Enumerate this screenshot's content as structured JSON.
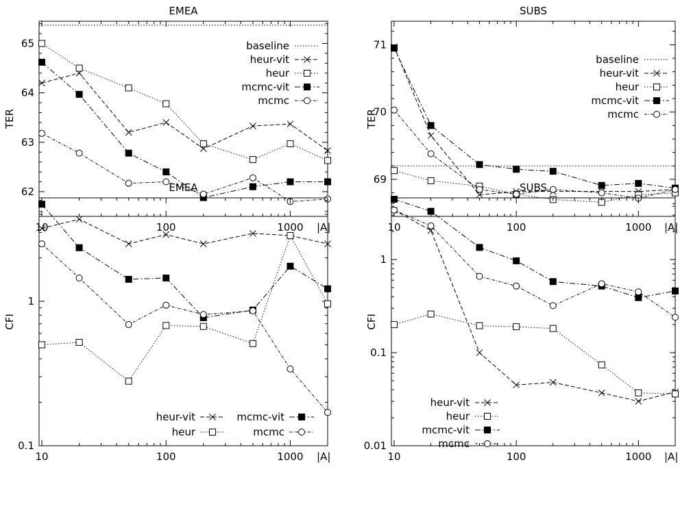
{
  "chart_data": [
    {
      "type": "line",
      "title": "EMEA",
      "xlabel": "|A|",
      "ylabel": "TER",
      "xscale": "log",
      "xlim": [
        9.5,
        2000
      ],
      "ylim": [
        61.5,
        65.45
      ],
      "xticks": [
        10,
        100,
        1000
      ],
      "xtick_labels": [
        "10",
        "100",
        "1000"
      ],
      "yticks": [
        62,
        63,
        64,
        65
      ],
      "ytick_labels": [
        "62",
        "63",
        "64",
        "65"
      ],
      "legend_position": "top-right",
      "baseline": 65.37,
      "legend": [
        "baseline",
        "heur-vit",
        "heur",
        "mcmc-vit",
        "mcmc"
      ],
      "x": [
        10,
        20,
        50,
        100,
        200,
        500,
        1000,
        2000
      ],
      "series": [
        {
          "name": "heur-vit",
          "marker": "x",
          "dash": "6,3",
          "values": [
            64.2,
            64.4,
            63.2,
            63.4,
            62.87,
            63.33,
            63.37,
            62.83
          ]
        },
        {
          "name": "heur",
          "marker": "square-open",
          "dash": "1.5,2.5",
          "values": [
            65.0,
            64.5,
            64.1,
            63.78,
            62.97,
            62.65,
            62.97,
            62.63
          ]
        },
        {
          "name": "mcmc-vit",
          "marker": "square-filled",
          "dash": "8,3,2,3",
          "values": [
            64.62,
            63.97,
            62.78,
            62.4,
            61.88,
            62.1,
            62.2,
            62.2
          ]
        },
        {
          "name": "mcmc",
          "marker": "circle-open",
          "dash": "4,2,1,2",
          "values": [
            63.18,
            62.78,
            62.17,
            62.2,
            61.95,
            62.28,
            61.8,
            61.85
          ]
        }
      ]
    },
    {
      "type": "line",
      "title": "SUBS",
      "xlabel": "|A|",
      "ylabel": "TER",
      "xscale": "log",
      "xlim": [
        9.5,
        2000
      ],
      "ylim": [
        68.45,
        71.35
      ],
      "xticks": [
        10,
        100,
        1000
      ],
      "xtick_labels": [
        "10",
        "100",
        "1000"
      ],
      "yticks": [
        69,
        70,
        71
      ],
      "ytick_labels": [
        "69",
        "70",
        "71"
      ],
      "legend_position": "top-right",
      "baseline": 69.2,
      "legend": [
        "baseline",
        "heur-vit",
        "heur",
        "mcmc-vit",
        "mcmc"
      ],
      "x": [
        10,
        20,
        50,
        100,
        200,
        500,
        1000,
        2000
      ],
      "series": [
        {
          "name": "heur-vit",
          "marker": "x",
          "dash": "6,3",
          "values": [
            70.97,
            69.65,
            68.77,
            68.82,
            68.82,
            68.82,
            68.82,
            68.85
          ]
        },
        {
          "name": "heur",
          "marker": "square-open",
          "dash": "1.5,2.5",
          "values": [
            69.13,
            68.98,
            68.9,
            68.78,
            68.7,
            68.66,
            68.77,
            68.8
          ]
        },
        {
          "name": "mcmc-vit",
          "marker": "square-filled",
          "dash": "8,3,2,3",
          "values": [
            70.95,
            69.8,
            69.22,
            69.15,
            69.12,
            68.91,
            68.94,
            68.87
          ]
        },
        {
          "name": "mcmc",
          "marker": "circle-open",
          "dash": "4,2,1,2",
          "values": [
            70.03,
            69.38,
            68.85,
            68.78,
            68.85,
            68.8,
            68.72,
            68.85
          ]
        }
      ]
    },
    {
      "type": "line",
      "title": "EMEA",
      "xlabel": "|A|",
      "ylabel": "CFI",
      "xscale": "log",
      "yscale": "log",
      "xlim": [
        9.5,
        2000
      ],
      "ylim": [
        0.1,
        5.2
      ],
      "xticks": [
        10,
        100,
        1000
      ],
      "xtick_labels": [
        "10",
        "100",
        "1000"
      ],
      "yticks": [
        0.1,
        1
      ],
      "ytick_labels": [
        "0.1",
        "1"
      ],
      "legend_position": "bottom-right",
      "legend": [
        "heur-vit",
        "heur",
        "mcmc-vit",
        "mcmc"
      ],
      "x": [
        10,
        20,
        50,
        100,
        200,
        500,
        1000,
        2000
      ],
      "series": [
        {
          "name": "heur-vit",
          "marker": "x",
          "dash": "6,3",
          "values": [
            3.2,
            3.7,
            2.5,
            2.9,
            2.5,
            2.95,
            2.85,
            2.5
          ]
        },
        {
          "name": "heur",
          "marker": "square-open",
          "dash": "1.5,2.5",
          "values": [
            0.5,
            0.52,
            0.28,
            0.68,
            0.67,
            0.51,
            2.85,
            0.96
          ]
        },
        {
          "name": "mcmc-vit",
          "marker": "square-filled",
          "dash": "8,3,2,3",
          "values": [
            4.7,
            2.35,
            1.42,
            1.45,
            0.77,
            0.87,
            1.75,
            1.22
          ]
        },
        {
          "name": "mcmc",
          "marker": "circle-open",
          "dash": "4,2,1,2",
          "values": [
            2.5,
            1.45,
            0.69,
            0.94,
            0.81,
            0.86,
            0.34,
            0.17
          ]
        }
      ]
    },
    {
      "type": "line",
      "title": "SUBS",
      "xlabel": "|A|",
      "ylabel": "CFI",
      "xscale": "log",
      "yscale": "log",
      "xlim": [
        9.5,
        2000
      ],
      "ylim": [
        0.01,
        4.6
      ],
      "xticks": [
        10,
        100,
        1000
      ],
      "xtick_labels": [
        "10",
        "100",
        "1000"
      ],
      "yticks": [
        0.01,
        0.1,
        1
      ],
      "ytick_labels": [
        "0.01",
        "0.1",
        "1"
      ],
      "legend_position": "bottom-left",
      "legend": [
        "heur-vit",
        "heur",
        "mcmc-vit",
        "mcmc"
      ],
      "x": [
        10,
        20,
        50,
        100,
        200,
        500,
        1000,
        2000
      ],
      "series": [
        {
          "name": "heur-vit",
          "marker": "x",
          "dash": "6,3",
          "values": [
            3.4,
            2.05,
            0.1,
            0.045,
            0.048,
            0.037,
            0.03,
            0.038
          ]
        },
        {
          "name": "heur",
          "marker": "square-open",
          "dash": "1.5,2.5",
          "values": [
            0.2,
            0.26,
            0.195,
            0.19,
            0.182,
            0.074,
            0.037,
            0.036
          ]
        },
        {
          "name": "mcmc-vit",
          "marker": "square-filled",
          "dash": "8,3,2,3",
          "values": [
            4.45,
            3.3,
            1.35,
            0.97,
            0.58,
            0.52,
            0.39,
            0.46
          ]
        },
        {
          "name": "mcmc",
          "marker": "circle-open",
          "dash": "4,2,1,2",
          "values": [
            3.4,
            2.3,
            0.66,
            0.52,
            0.32,
            0.55,
            0.45,
            0.24
          ]
        }
      ]
    }
  ]
}
